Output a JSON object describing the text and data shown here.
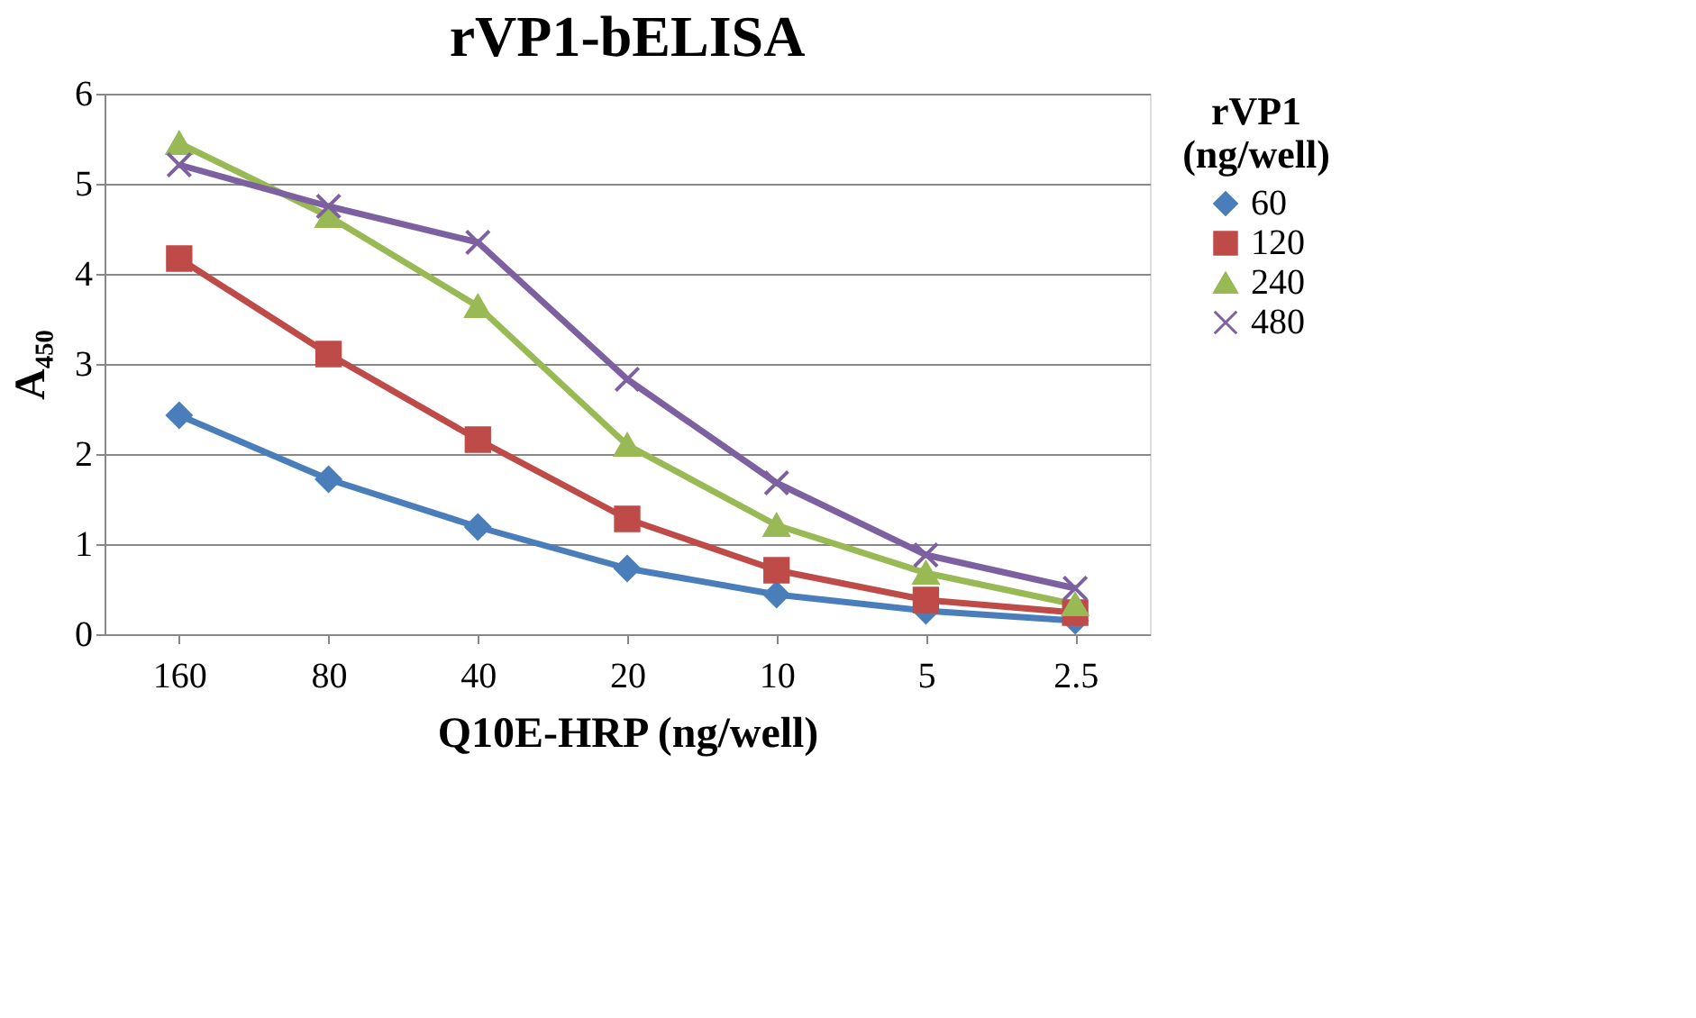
{
  "chart_data": {
    "type": "line",
    "title": "rVP1-bELISA",
    "xlabel": "Q10E-HRP (ng/well)",
    "ylabel": "A₄₅₀",
    "legend_title": "rVP1 (ng/well)",
    "categories": [
      "160",
      "80",
      "40",
      "20",
      "10",
      "5",
      "2.5"
    ],
    "series": [
      {
        "name": "60",
        "color": "#4a7ebb",
        "marker": "diamond",
        "values": [
          2.43,
          1.72,
          1.19,
          0.73,
          0.44,
          0.26,
          0.15
        ]
      },
      {
        "name": "120",
        "color": "#be4b48",
        "marker": "square",
        "values": [
          4.17,
          3.11,
          2.16,
          1.28,
          0.71,
          0.38,
          0.24
        ]
      },
      {
        "name": "240",
        "color": "#98b954",
        "marker": "triangle",
        "values": [
          5.45,
          4.64,
          3.64,
          2.1,
          1.21,
          0.68,
          0.33
        ]
      },
      {
        "name": "480",
        "color": "#7d60a0",
        "marker": "cross",
        "values": [
          5.21,
          4.75,
          4.35,
          2.83,
          1.68,
          0.88,
          0.51
        ]
      }
    ],
    "ylim": [
      0,
      6
    ],
    "yticks": [
      0,
      1,
      2,
      3,
      4,
      5,
      6
    ],
    "grid": "y",
    "legend": "right",
    "line_style": "solid"
  }
}
